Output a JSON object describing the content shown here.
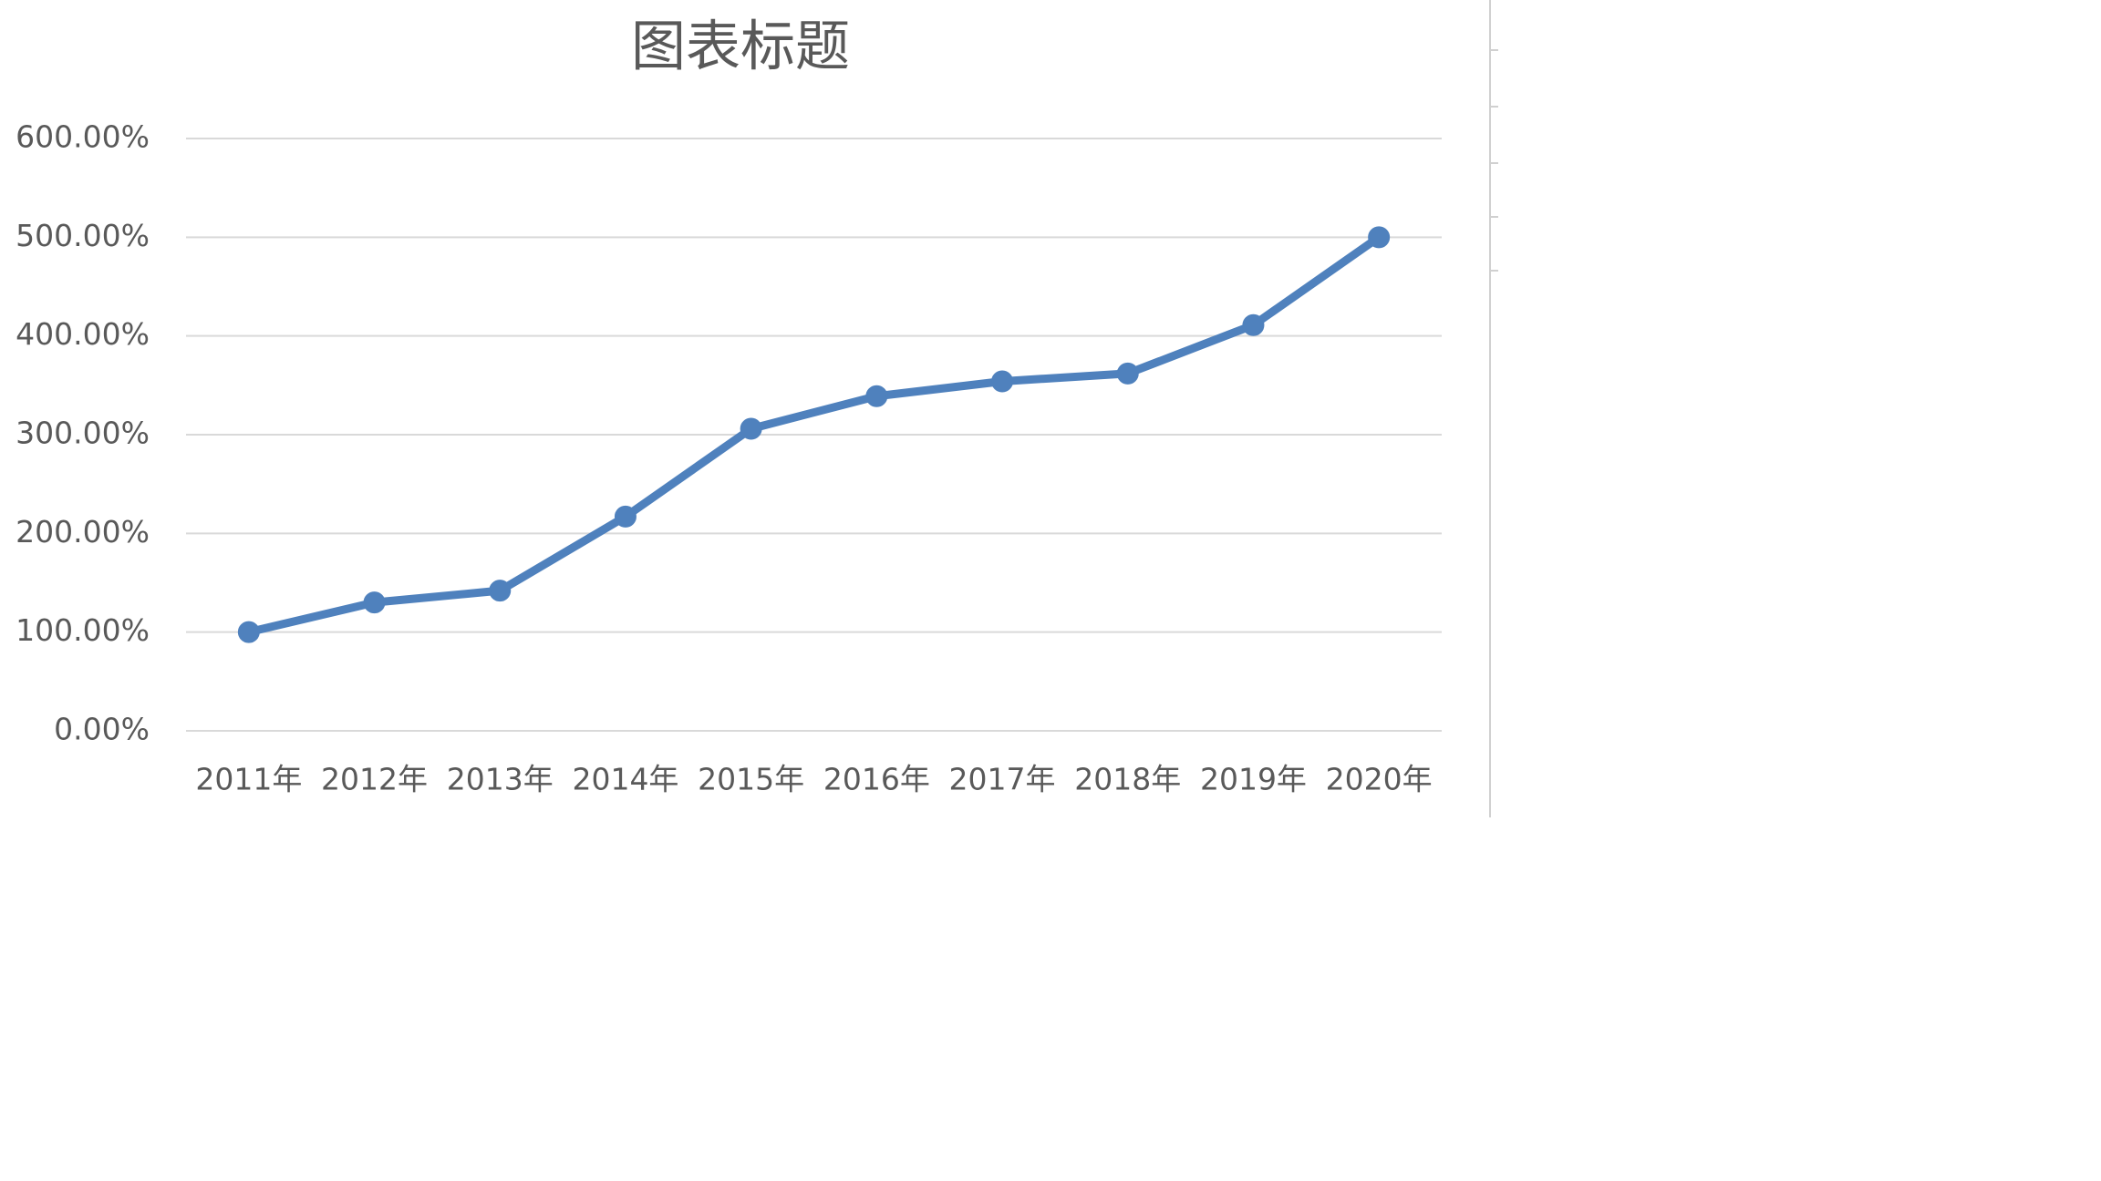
{
  "chart_data": {
    "type": "line",
    "title": "图表标题",
    "categories": [
      "2011年",
      "2012年",
      "2013年",
      "2014年",
      "2015年",
      "2016年",
      "2017年",
      "2018年",
      "2019年",
      "2020年"
    ],
    "values": [
      100,
      130,
      142,
      217,
      306,
      339,
      354,
      362,
      411,
      500
    ],
    "color": "#4f81bd",
    "markers": true,
    "ylim": [
      0,
      600
    ],
    "yticks": [
      {
        "value": 0,
        "label": "0.00%"
      },
      {
        "value": 100,
        "label": "100.00%"
      },
      {
        "value": 200,
        "label": "200.00%"
      },
      {
        "value": 300,
        "label": "300.00%"
      },
      {
        "value": 400,
        "label": "400.00%"
      },
      {
        "value": 500,
        "label": "500.00%"
      },
      {
        "value": 600,
        "label": "600.00%"
      }
    ],
    "grid": true
  }
}
